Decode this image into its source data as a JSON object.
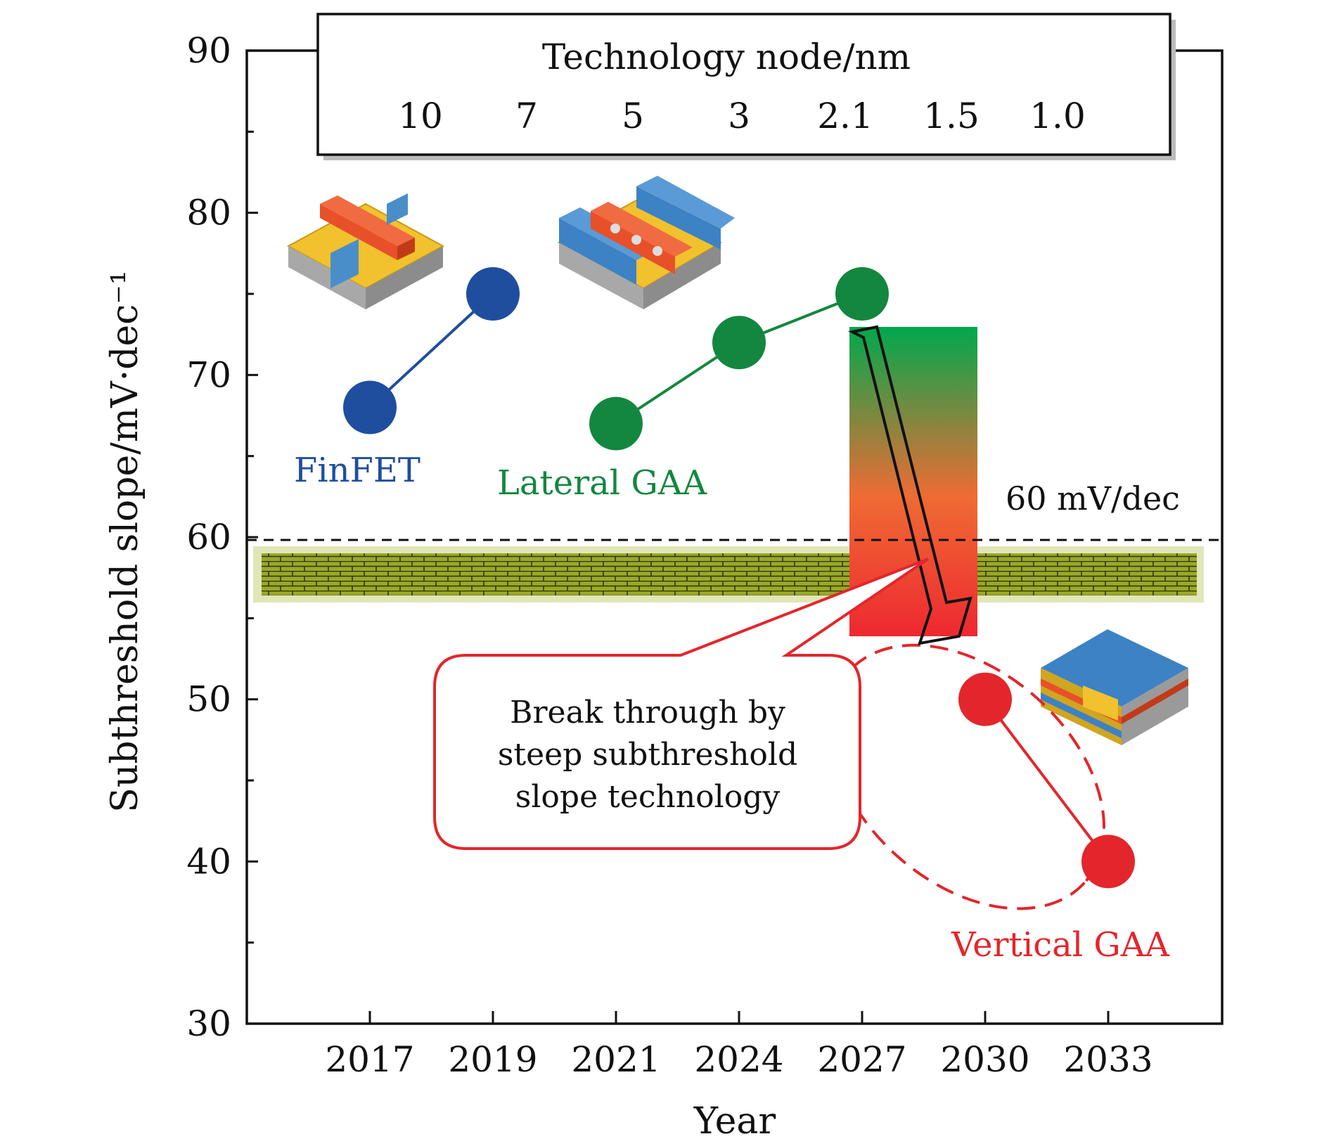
{
  "chart_data": {
    "type": "line",
    "xlabel": "Year",
    "ylabel": "Subthreshold slope/mV·dec⁻¹",
    "ylim": [
      30,
      90
    ],
    "yticks": [
      30,
      40,
      50,
      60,
      70,
      80,
      90
    ],
    "categories": [
      "2017",
      "2019",
      "2021",
      "2024",
      "2027",
      "2030",
      "2033"
    ],
    "series": [
      {
        "name": "FinFET",
        "color": "#1f4e9e",
        "points": [
          {
            "x": "2017",
            "y": 68
          },
          {
            "x": "2019",
            "y": 75
          }
        ]
      },
      {
        "name": "Lateral GAA",
        "color": "#13873f",
        "points": [
          {
            "x": "2021",
            "y": 67
          },
          {
            "x": "2024",
            "y": 72
          },
          {
            "x": "2027",
            "y": 75
          }
        ]
      },
      {
        "name": "Vertical GAA",
        "color": "#e3262b",
        "points": [
          {
            "x": "2030",
            "y": 50
          },
          {
            "x": "2033",
            "y": 40
          }
        ]
      }
    ],
    "reference_line": {
      "y": 60,
      "label": "60 mV/dec"
    },
    "technology_box": {
      "title": "Technology node/nm",
      "nodes": [
        "10",
        "7",
        "5",
        "3",
        "2.1",
        "1.5",
        "1.0"
      ]
    },
    "annotation": {
      "lines": [
        "Break through by",
        "steep subthreshold",
        "slope technology"
      ]
    },
    "gradient_colors": {
      "top": "#00a84c",
      "middle": "#ef6b34",
      "bottom": "#ee2830"
    },
    "wall_color": "#8a9a1a"
  }
}
